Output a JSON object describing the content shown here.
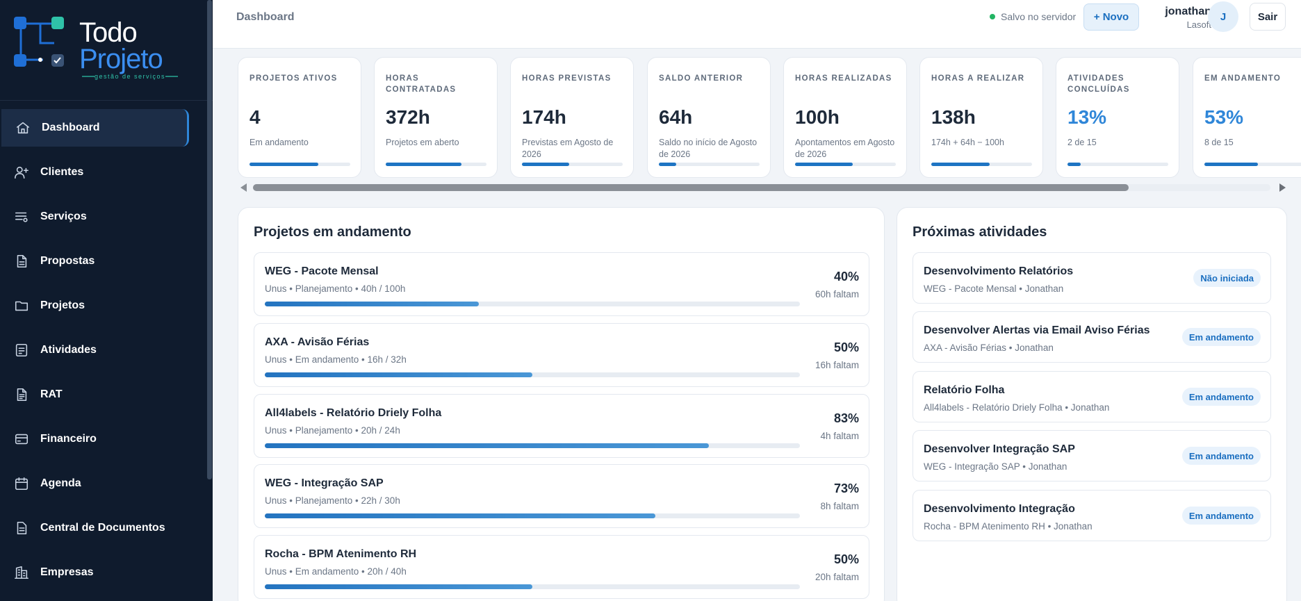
{
  "brand": {
    "name_line1": "Todo",
    "name_line2": "Projeto",
    "tagline": "gestão de serviços"
  },
  "sidebar": {
    "items": [
      {
        "label": "Dashboard",
        "icon": "home-icon"
      },
      {
        "label": "Clientes",
        "icon": "user-plus-icon"
      },
      {
        "label": "Serviços",
        "icon": "list-icon"
      },
      {
        "label": "Propostas",
        "icon": "document-icon"
      },
      {
        "label": "Projetos",
        "icon": "folder-icon"
      },
      {
        "label": "Atividades",
        "icon": "checklist-icon"
      },
      {
        "label": "RAT",
        "icon": "report-icon"
      },
      {
        "label": "Financeiro",
        "icon": "card-icon"
      },
      {
        "label": "Agenda",
        "icon": "calendar-icon"
      },
      {
        "label": "Central de Documentos",
        "icon": "file-icon"
      },
      {
        "label": "Empresas",
        "icon": "building-icon"
      }
    ]
  },
  "header": {
    "breadcrumb": "Dashboard",
    "save_status": "Salvo no servidor",
    "new_button": "+ Novo",
    "user_name": "jonathan",
    "user_org": "Lasoft",
    "avatar_initial": "J",
    "logout_button": "Sair"
  },
  "kpis": [
    {
      "label": "Projetos ativos",
      "value": "4",
      "sub": "Em andamento",
      "progress": 0.68,
      "accent": false
    },
    {
      "label": "Horas contratadas",
      "value": "372h",
      "sub": "Projetos em aberto",
      "progress": 0.75,
      "accent": false
    },
    {
      "label": "Horas previstas",
      "value": "174h",
      "sub": "Previstas em Agosto de 2026",
      "progress": 0.47,
      "accent": false
    },
    {
      "label": "Saldo anterior",
      "value": "64h",
      "sub": "Saldo no início de Agosto de 2026",
      "progress": 0.17,
      "accent": false
    },
    {
      "label": "Horas realizadas",
      "value": "100h",
      "sub": "Apontamentos em Agosto de 2026",
      "progress": 0.57,
      "accent": false
    },
    {
      "label": "Horas a realizar",
      "value": "138h",
      "sub": "174h + 64h − 100h",
      "progress": 0.58,
      "accent": false
    },
    {
      "label": "Atividades concluídas",
      "value": "13%",
      "sub": "2 de 15",
      "progress": 0.13,
      "accent": true
    },
    {
      "label": "Em andamento",
      "value": "53%",
      "sub": "8 de 15",
      "progress": 0.53,
      "accent": true
    }
  ],
  "projects_panel": {
    "title": "Projetos em andamento",
    "items": [
      {
        "name": "WEG - Pacote Mensal",
        "meta": "Unus • Planejamento • 40h / 100h",
        "percent": "40%",
        "remaining": "60h faltam",
        "progress": 0.4
      },
      {
        "name": "AXA - Avisão Férias",
        "meta": "Unus • Em andamento • 16h / 32h",
        "percent": "50%",
        "remaining": "16h faltam",
        "progress": 0.5
      },
      {
        "name": "All4labels - Relatório Driely Folha",
        "meta": "Unus • Planejamento • 20h / 24h",
        "percent": "83%",
        "remaining": "4h faltam",
        "progress": 0.83
      },
      {
        "name": "WEG - Integração SAP",
        "meta": "Unus • Planejamento • 22h / 30h",
        "percent": "73%",
        "remaining": "8h faltam",
        "progress": 0.73
      },
      {
        "name": "Rocha - BPM Atenimento RH",
        "meta": "Unus • Em andamento • 20h / 40h",
        "percent": "50%",
        "remaining": "20h faltam",
        "progress": 0.5
      }
    ]
  },
  "activities_panel": {
    "title": "Próximas atividades",
    "items": [
      {
        "name": "Desenvolvimento Relatórios",
        "meta": "WEG - Pacote Mensal • Jonathan",
        "status": "Não iniciada"
      },
      {
        "name": "Desenvolver Alertas via Email Aviso Férias",
        "meta": "AXA - Avisão Férias • Jonathan",
        "status": "Em andamento"
      },
      {
        "name": "Relatório Folha",
        "meta": "All4labels - Relatório Driely Folha • Jonathan",
        "status": "Em andamento"
      },
      {
        "name": "Desenvolver Integração SAP",
        "meta": "WEG - Integração SAP • Jonathan",
        "status": "Em andamento"
      },
      {
        "name": "Desenvolvimento Integração",
        "meta": "Rocha - BPM Atenimento RH • Jonathan",
        "status": "Em andamento"
      }
    ]
  },
  "colors": {
    "sidebar_bg": "#0f1b2d",
    "accent": "#2f86d8",
    "brand_teal": "#2fc2a8",
    "status_green": "#22b463"
  }
}
